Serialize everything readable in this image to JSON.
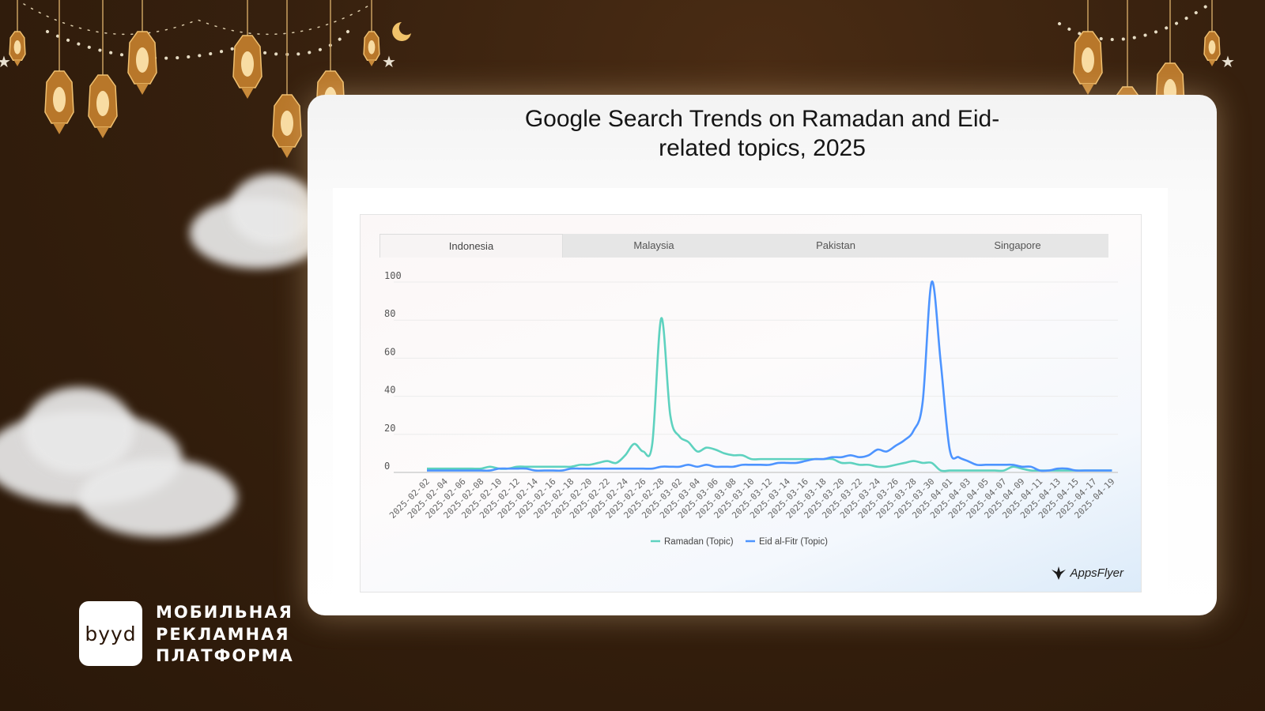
{
  "card": {
    "title_line1": "Google Search Trends on Ramadan and Eid-",
    "title_line2": "related topics, 2025"
  },
  "tabs": [
    {
      "label": "Indonesia",
      "active": true
    },
    {
      "label": "Malaysia",
      "active": false
    },
    {
      "label": "Pakistan",
      "active": false
    },
    {
      "label": "Singapore",
      "active": false
    }
  ],
  "brand": {
    "logo_text": "byyd",
    "tagline": [
      "МОБИЛЬНАЯ",
      "РЕКЛАМНАЯ",
      "ПЛАТФОРМА"
    ]
  },
  "watermark": {
    "text": "AppsFlyer"
  },
  "chart_data": {
    "type": "line",
    "title": "Google Search Trends on Ramadan and Eid-related topics, 2025",
    "xlabel": "",
    "ylabel": "",
    "ylim": [
      0,
      100
    ],
    "yticks": [
      0,
      20,
      40,
      60,
      80,
      100
    ],
    "grid": true,
    "legend_position": "bottom",
    "x_start": "2025-02-02",
    "x_end": "2025-04-19",
    "x_tick_labels": [
      "2025-02-02",
      "2025-02-04",
      "2025-02-06",
      "2025-02-08",
      "2025-02-10",
      "2025-02-12",
      "2025-02-14",
      "2025-02-16",
      "2025-02-18",
      "2025-02-20",
      "2025-02-22",
      "2025-02-24",
      "2025-02-26",
      "2025-02-28",
      "2025-03-02",
      "2025-03-04",
      "2025-03-06",
      "2025-03-08",
      "2025-03-10",
      "2025-03-12",
      "2025-03-14",
      "2025-03-16",
      "2025-03-18",
      "2025-03-20",
      "2025-03-22",
      "2025-03-24",
      "2025-03-26",
      "2025-03-28",
      "2025-03-30",
      "2025-04-01",
      "2025-04-03",
      "2025-04-05",
      "2025-04-07",
      "2025-04-09",
      "2025-04-11",
      "2025-04-13",
      "2025-04-15",
      "2025-04-17",
      "2025-04-19"
    ],
    "series": [
      {
        "name": "Ramadan (Topic)",
        "color": "#5ed2bf",
        "values": [
          2,
          2,
          2,
          2,
          2,
          2,
          2,
          3,
          2,
          2,
          3,
          3,
          3,
          3,
          3,
          3,
          3,
          4,
          4,
          5,
          6,
          5,
          9,
          15,
          11,
          15,
          81,
          30,
          19,
          16,
          11,
          13,
          12,
          10,
          9,
          9,
          7,
          7,
          7,
          7,
          7,
          7,
          7,
          7,
          7,
          7,
          5,
          5,
          4,
          4,
          3,
          3,
          4,
          5,
          6,
          5,
          5,
          1,
          1,
          1,
          1,
          1,
          1,
          1,
          1,
          3,
          2,
          1,
          1,
          1,
          1,
          1,
          1,
          1,
          1,
          1,
          1
        ]
      },
      {
        "name": "Eid al-Fitr (Topic)",
        "color": "#4d94ff",
        "values": [
          1,
          1,
          1,
          1,
          1,
          1,
          1,
          1,
          2,
          2,
          2,
          2,
          1,
          1,
          1,
          1,
          2,
          2,
          2,
          2,
          2,
          2,
          2,
          2,
          2,
          2,
          3,
          3,
          3,
          4,
          3,
          4,
          3,
          3,
          3,
          4,
          4,
          4,
          4,
          5,
          5,
          5,
          6,
          7,
          7,
          8,
          8,
          9,
          8,
          9,
          12,
          11,
          14,
          17,
          22,
          37,
          100,
          58,
          12,
          8,
          6,
          4,
          4,
          4,
          4,
          4,
          3,
          3,
          1,
          1,
          2,
          2,
          1,
          1,
          1,
          1,
          1
        ]
      }
    ]
  }
}
